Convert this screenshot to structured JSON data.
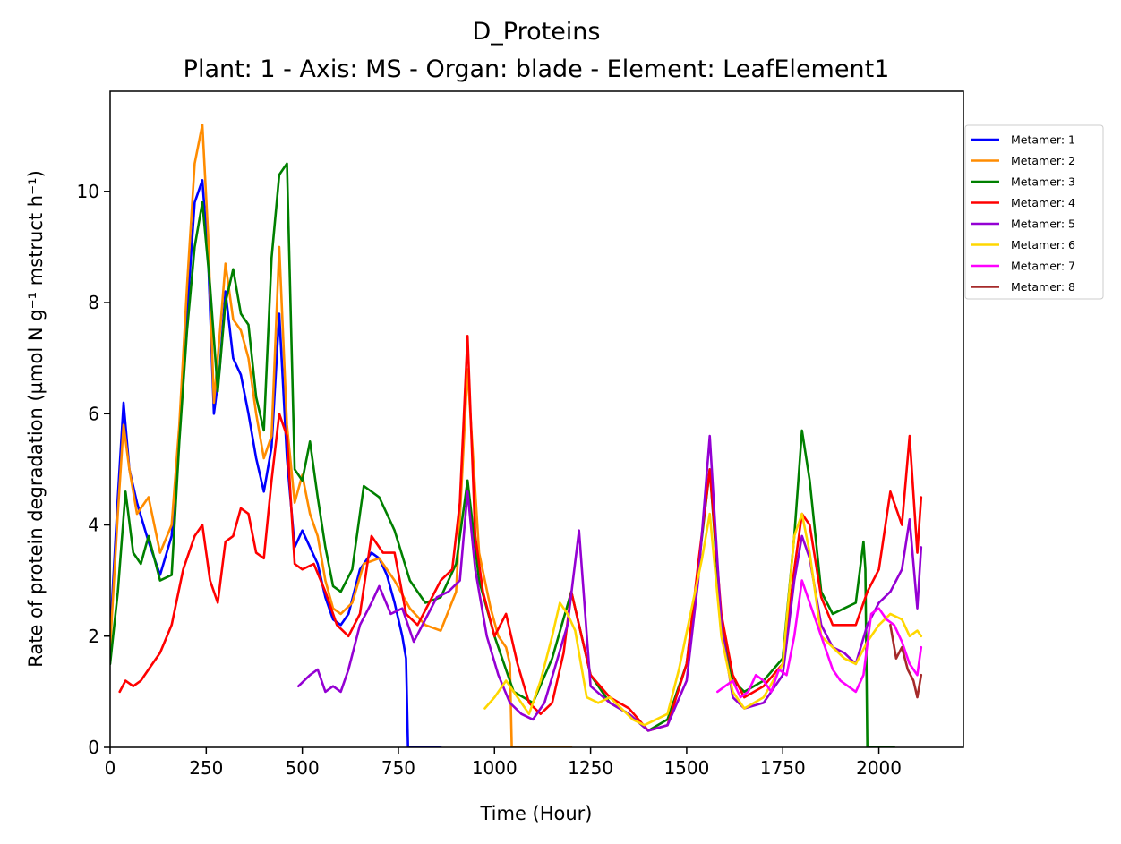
{
  "chart_data": {
    "type": "line",
    "title": "D_Proteins",
    "subtitle": "Plant: 1 - Axis: MS - Organ: blade - Element: LeafElement1",
    "xlabel": "Time (Hour)",
    "ylabel": "Rate of protein degradation (µmol N g⁻¹ mstruct h⁻¹)",
    "xlim": [
      0,
      2220
    ],
    "ylim": [
      0,
      11.8
    ],
    "xticks": [
      0,
      250,
      500,
      750,
      1000,
      1250,
      1500,
      1750,
      2000
    ],
    "yticks": [
      0,
      2,
      4,
      6,
      8,
      10
    ],
    "grid": false,
    "legend_position": "right-outside-top",
    "series": [
      {
        "name": "Metamer: 1",
        "color": "#0000ff",
        "x": [
          0,
          20,
          35,
          50,
          70,
          100,
          130,
          160,
          180,
          200,
          220,
          240,
          255,
          270,
          285,
          300,
          320,
          340,
          360,
          380,
          400,
          420,
          440,
          460,
          480,
          500,
          520,
          540,
          560,
          580,
          600,
          620,
          650,
          680,
          700,
          720,
          740,
          760,
          770,
          775,
          800,
          860
        ],
        "y": [
          2.0,
          4.5,
          6.2,
          5.0,
          4.4,
          3.7,
          3.1,
          3.8,
          5.6,
          7.8,
          9.8,
          10.2,
          8.8,
          6.0,
          6.8,
          8.2,
          7.0,
          6.7,
          6.0,
          5.2,
          4.6,
          5.4,
          7.8,
          5.2,
          3.6,
          3.9,
          3.6,
          3.3,
          2.7,
          2.3,
          2.2,
          2.4,
          3.2,
          3.5,
          3.4,
          3.1,
          2.6,
          2.0,
          1.6,
          0,
          0,
          0
        ]
      },
      {
        "name": "Metamer: 2",
        "color": "#ff8c00",
        "x": [
          0,
          20,
          35,
          50,
          70,
          100,
          130,
          160,
          180,
          200,
          220,
          240,
          255,
          270,
          285,
          300,
          320,
          340,
          360,
          380,
          400,
          420,
          440,
          460,
          480,
          500,
          520,
          540,
          560,
          580,
          600,
          630,
          660,
          700,
          740,
          780,
          820,
          860,
          900,
          930,
          960,
          990,
          1010,
          1030,
          1040,
          1045,
          1100,
          1200
        ],
        "y": [
          1.8,
          4.2,
          5.8,
          5.0,
          4.2,
          4.5,
          3.5,
          4.0,
          5.8,
          8.3,
          10.5,
          11.2,
          9.2,
          6.2,
          7.4,
          8.7,
          7.7,
          7.5,
          7.0,
          6.0,
          5.2,
          5.6,
          9.0,
          5.8,
          4.4,
          4.9,
          4.2,
          3.8,
          3.0,
          2.5,
          2.4,
          2.6,
          3.3,
          3.4,
          3.0,
          2.5,
          2.2,
          2.1,
          2.8,
          6.8,
          3.5,
          2.5,
          2.0,
          1.8,
          1.5,
          0,
          0,
          0
        ]
      },
      {
        "name": "Metamer: 3",
        "color": "#008000",
        "x": [
          0,
          20,
          40,
          60,
          80,
          100,
          130,
          160,
          180,
          200,
          220,
          240,
          260,
          280,
          300,
          320,
          340,
          360,
          380,
          400,
          420,
          440,
          460,
          480,
          500,
          520,
          540,
          560,
          580,
          600,
          630,
          660,
          700,
          740,
          780,
          820,
          860,
          900,
          930,
          960,
          1000,
          1050,
          1100,
          1150,
          1200,
          1250,
          1300,
          1350,
          1400,
          1450,
          1500,
          1530,
          1560,
          1590,
          1620,
          1650,
          1700,
          1750,
          1780,
          1800,
          1820,
          1850,
          1880,
          1910,
          1940,
          1960,
          1965,
          1970,
          2040
        ],
        "y": [
          1.5,
          2.8,
          4.6,
          3.5,
          3.3,
          3.8,
          3.0,
          3.1,
          5.5,
          7.5,
          9.0,
          9.8,
          8.3,
          6.4,
          8.0,
          8.6,
          7.8,
          7.6,
          6.3,
          5.7,
          8.8,
          10.3,
          10.5,
          5.0,
          4.8,
          5.5,
          4.5,
          3.6,
          2.9,
          2.8,
          3.2,
          4.7,
          4.5,
          3.9,
          3.0,
          2.6,
          2.7,
          3.3,
          4.8,
          3.0,
          2.0,
          1.0,
          0.8,
          1.6,
          2.8,
          1.3,
          0.8,
          0.6,
          0.3,
          0.5,
          1.5,
          3.2,
          5.0,
          2.2,
          1.2,
          1.0,
          1.2,
          1.6,
          3.8,
          5.7,
          4.8,
          2.8,
          2.4,
          2.5,
          2.6,
          3.7,
          3.2,
          0,
          0
        ]
      },
      {
        "name": "Metamer: 4",
        "color": "#ff0000",
        "x": [
          25,
          40,
          60,
          80,
          100,
          130,
          160,
          190,
          220,
          240,
          260,
          280,
          300,
          320,
          340,
          360,
          380,
          400,
          420,
          440,
          460,
          480,
          500,
          530,
          560,
          590,
          620,
          650,
          680,
          710,
          740,
          770,
          800,
          830,
          860,
          890,
          910,
          930,
          950,
          970,
          1000,
          1030,
          1060,
          1090,
          1120,
          1150,
          1180,
          1200,
          1250,
          1300,
          1350,
          1400,
          1450,
          1500,
          1530,
          1560,
          1590,
          1620,
          1650,
          1700,
          1750,
          1780,
          1800,
          1820,
          1850,
          1880,
          1910,
          1940,
          1970,
          2000,
          2030,
          2060,
          2080,
          2100,
          2110
        ],
        "y": [
          1.0,
          1.2,
          1.1,
          1.2,
          1.4,
          1.7,
          2.2,
          3.2,
          3.8,
          4.0,
          3.0,
          2.6,
          3.7,
          3.8,
          4.3,
          4.2,
          3.5,
          3.4,
          4.8,
          6.0,
          5.6,
          3.3,
          3.2,
          3.3,
          2.8,
          2.2,
          2.0,
          2.4,
          3.8,
          3.5,
          3.5,
          2.4,
          2.2,
          2.6,
          3.0,
          3.2,
          4.4,
          7.4,
          3.8,
          2.8,
          2.0,
          2.4,
          1.5,
          0.8,
          0.6,
          0.8,
          1.7,
          2.8,
          1.3,
          0.9,
          0.7,
          0.3,
          0.4,
          1.5,
          3.3,
          5.0,
          2.4,
          1.3,
          0.9,
          1.1,
          1.5,
          3.2,
          4.2,
          4.0,
          2.7,
          2.2,
          2.2,
          2.2,
          2.8,
          3.2,
          4.6,
          4.0,
          5.6,
          3.5,
          4.5
        ]
      },
      {
        "name": "Metamer: 5",
        "color": "#9400d3",
        "x": [
          490,
          520,
          540,
          560,
          580,
          600,
          620,
          650,
          680,
          700,
          730,
          760,
          790,
          820,
          850,
          880,
          910,
          930,
          950,
          980,
          1010,
          1040,
          1070,
          1100,
          1130,
          1160,
          1190,
          1220,
          1250,
          1300,
          1350,
          1400,
          1450,
          1500,
          1530,
          1560,
          1590,
          1620,
          1650,
          1700,
          1750,
          1780,
          1800,
          1820,
          1850,
          1880,
          1910,
          1940,
          1970,
          2000,
          2030,
          2060,
          2080,
          2100,
          2110
        ],
        "y": [
          1.1,
          1.3,
          1.4,
          1.0,
          1.1,
          1.0,
          1.4,
          2.2,
          2.6,
          2.9,
          2.4,
          2.5,
          1.9,
          2.3,
          2.7,
          2.8,
          3.0,
          4.6,
          3.2,
          2.0,
          1.3,
          0.8,
          0.6,
          0.5,
          0.8,
          1.5,
          2.2,
          3.9,
          1.1,
          0.8,
          0.6,
          0.3,
          0.4,
          1.2,
          3.0,
          5.6,
          2.2,
          0.9,
          0.7,
          0.8,
          1.3,
          3.0,
          3.8,
          3.4,
          2.2,
          1.8,
          1.7,
          1.5,
          2.2,
          2.6,
          2.8,
          3.2,
          4.1,
          2.5,
          3.6
        ]
      },
      {
        "name": "Metamer: 6",
        "color": "#ffd700",
        "x": [
          975,
          1000,
          1030,
          1060,
          1090,
          1120,
          1150,
          1170,
          1190,
          1210,
          1240,
          1270,
          1300,
          1330,
          1360,
          1390,
          1420,
          1450,
          1480,
          1510,
          1540,
          1560,
          1590,
          1620,
          1650,
          1700,
          1750,
          1780,
          1800,
          1820,
          1850,
          1880,
          1910,
          1940,
          1970,
          2000,
          2030,
          2060,
          2080,
          2100,
          2110
        ],
        "y": [
          0.7,
          0.9,
          1.2,
          0.9,
          0.6,
          1.2,
          2.0,
          2.6,
          2.4,
          2.1,
          0.9,
          0.8,
          0.9,
          0.7,
          0.5,
          0.4,
          0.5,
          0.6,
          1.4,
          2.4,
          3.4,
          4.2,
          2.0,
          1.0,
          0.7,
          0.9,
          1.5,
          3.8,
          4.2,
          3.5,
          2.0,
          1.8,
          1.6,
          1.5,
          1.9,
          2.2,
          2.4,
          2.3,
          2.0,
          2.1,
          2.0
        ]
      },
      {
        "name": "Metamer: 7",
        "color": "#ff00ff",
        "x": [
          1580,
          1600,
          1620,
          1640,
          1660,
          1680,
          1700,
          1720,
          1740,
          1760,
          1780,
          1800,
          1820,
          1840,
          1860,
          1880,
          1900,
          1920,
          1940,
          1960,
          1980,
          2000,
          2020,
          2040,
          2060,
          2080,
          2100,
          2110
        ],
        "y": [
          1.0,
          1.1,
          1.2,
          0.9,
          1.0,
          1.3,
          1.2,
          1.0,
          1.4,
          1.3,
          2.0,
          3.0,
          2.6,
          2.2,
          1.8,
          1.4,
          1.2,
          1.1,
          1.0,
          1.3,
          2.4,
          2.5,
          2.3,
          2.2,
          1.9,
          1.5,
          1.3,
          1.8
        ]
      },
      {
        "name": "Metamer: 8",
        "color": "#a52a2a",
        "x": [
          2030,
          2045,
          2060,
          2075,
          2090,
          2100,
          2110
        ],
        "y": [
          2.2,
          1.6,
          1.8,
          1.4,
          1.2,
          0.9,
          1.3
        ]
      }
    ]
  }
}
